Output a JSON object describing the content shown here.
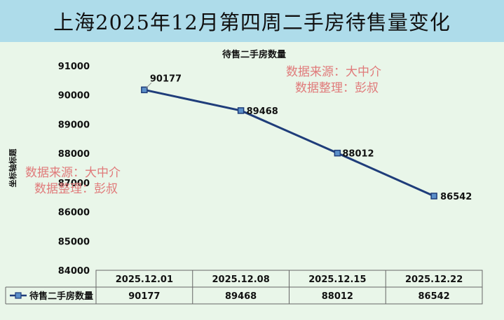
{
  "banner": {
    "title": "上海2025年12月第四周二手房待售量变化"
  },
  "watermarks": [
    {
      "line1": "数据来源：大中介",
      "line2": "数据整理：彭叔"
    },
    {
      "line1": "数据来源：大中介",
      "line2": "数据整理：彭叔"
    }
  ],
  "colors": {
    "banner_bg": "#aedcea",
    "plot_bg": "#e9f6e9",
    "series": "#1f3d7a",
    "marker": "#5b8fc9",
    "watermark": "#e07a7a"
  },
  "chart_data": {
    "type": "line",
    "title": "待售二手房数量",
    "xlabel": "",
    "ylabel": "坐标轴标题",
    "categories": [
      "2025.12.01",
      "2025.12.08",
      "2025.12.15",
      "2025.12.22"
    ],
    "series": [
      {
        "name": "待售二手房数量",
        "values": [
          90177,
          89468,
          88012,
          86542
        ]
      }
    ],
    "ylim": [
      84000,
      91000
    ],
    "yticks": [
      "84000",
      "85000",
      "86000",
      "87000",
      "88000",
      "89000",
      "90000",
      "91000"
    ],
    "data_labels": [
      "90177",
      "89468",
      "88012",
      "86542"
    ],
    "grid": false,
    "legend": "data-table"
  }
}
